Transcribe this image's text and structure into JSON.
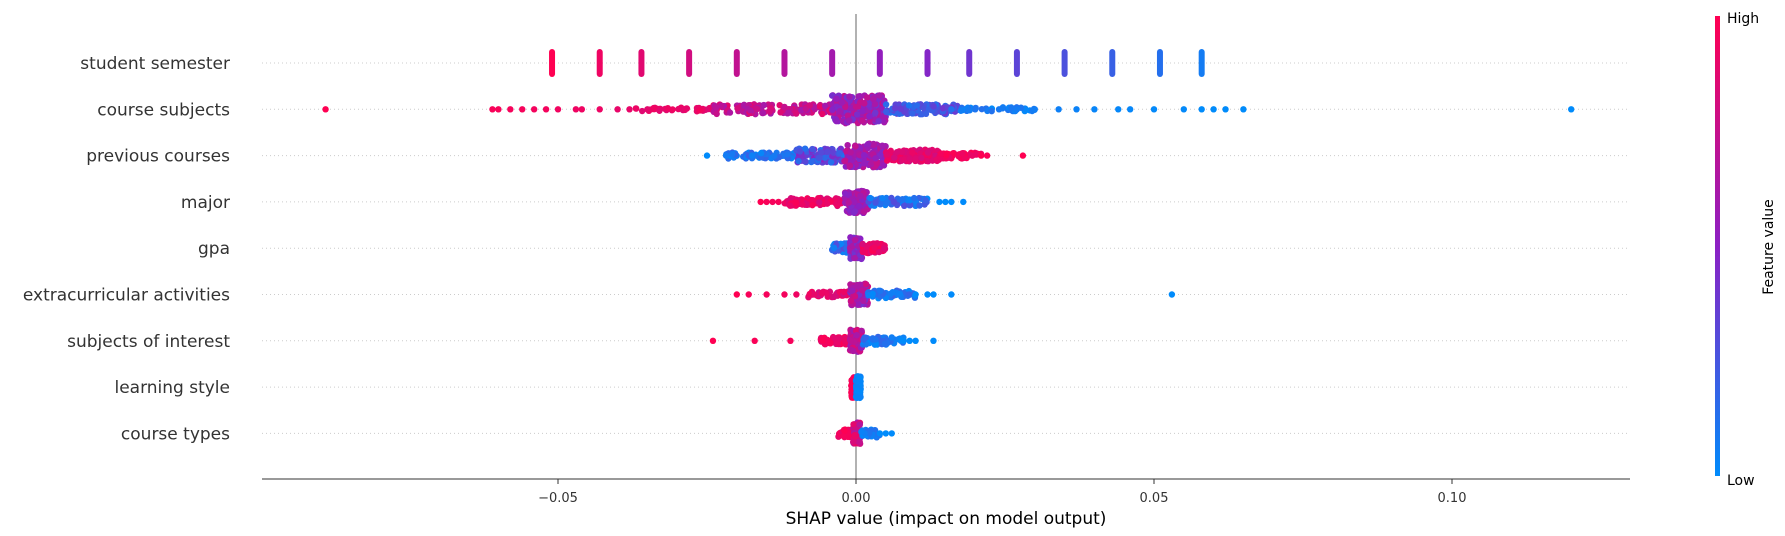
{
  "chart_data": {
    "type": "scatter",
    "subtype": "shap-beeswarm",
    "title": "",
    "xlabel": "SHAP value (impact on model output)",
    "ylabel": "",
    "xlim": [
      -0.099,
      0.129
    ],
    "xticks": [
      -0.05,
      0.0,
      0.05,
      0.1
    ],
    "xtick_labels": [
      "−0.05",
      "0.00",
      "0.05",
      "0.10"
    ],
    "grid": false,
    "colorbar": {
      "label": "Feature value",
      "high_label": "High",
      "low_label": "Low",
      "low_color": "#008bfb",
      "high_color": "#ff0052"
    },
    "features": [
      {
        "name": "student semester",
        "points": [
          [
            -0.051,
            1.0
          ],
          [
            -0.043,
            0.93
          ],
          [
            -0.036,
            0.87
          ],
          [
            -0.028,
            0.8
          ],
          [
            -0.02,
            0.73
          ],
          [
            -0.012,
            0.67
          ],
          [
            -0.004,
            0.6
          ],
          [
            0.004,
            0.53
          ],
          [
            0.012,
            0.47
          ],
          [
            0.019,
            0.4
          ],
          [
            0.027,
            0.33
          ],
          [
            0.035,
            0.27
          ],
          [
            0.043,
            0.2
          ],
          [
            0.051,
            0.13
          ],
          [
            0.058,
            0.07
          ]
        ],
        "spread": [
          0,
          0
        ],
        "clusters": []
      },
      {
        "name": "course subjects",
        "points": [
          [
            -0.089,
            1.0
          ],
          [
            -0.061,
            0.97
          ],
          [
            -0.06,
            0.97
          ],
          [
            -0.058,
            0.96
          ],
          [
            -0.056,
            0.96
          ],
          [
            -0.054,
            0.95
          ],
          [
            -0.052,
            0.95
          ],
          [
            -0.05,
            0.94
          ],
          [
            -0.047,
            0.93
          ],
          [
            -0.046,
            0.93
          ],
          [
            -0.043,
            0.92
          ],
          [
            -0.04,
            0.9
          ],
          [
            -0.038,
            0.9
          ],
          [
            -0.035,
            0.88
          ],
          [
            0.016,
            0.12
          ],
          [
            0.02,
            0.1
          ],
          [
            0.024,
            0.08
          ],
          [
            0.027,
            0.07
          ],
          [
            0.03,
            0.06
          ],
          [
            0.034,
            0.05
          ],
          [
            0.037,
            0.04
          ],
          [
            0.04,
            0.03
          ],
          [
            0.044,
            0.02
          ],
          [
            0.046,
            0.02
          ],
          [
            0.05,
            0.01
          ],
          [
            0.055,
            0.01
          ],
          [
            0.058,
            0.0
          ],
          [
            0.06,
            0.0
          ],
          [
            0.062,
            0.0
          ],
          [
            0.065,
            0.0
          ],
          [
            0.12,
            0.0
          ]
        ],
        "spread": [
          -0.04,
          0.045
        ],
        "clusters": [
          {
            "range": [
              -0.037,
              -0.024
            ],
            "w": 2,
            "n": 40,
            "color": [
              0.85,
              0.95
            ]
          },
          {
            "range": [
              -0.024,
              -0.004
            ],
            "w": 5,
            "n": 140,
            "color": [
              0.6,
              0.9
            ]
          },
          {
            "range": [
              -0.004,
              0.005
            ],
            "w": 14,
            "n": 220,
            "color": [
              0.4,
              0.75
            ]
          },
          {
            "range": [
              0.005,
              0.017
            ],
            "w": 5,
            "n": 110,
            "color": [
              0.1,
              0.4
            ]
          },
          {
            "range": [
              0.017,
              0.03
            ],
            "w": 2,
            "n": 40,
            "color": [
              0.0,
              0.15
            ]
          }
        ]
      },
      {
        "name": "previous courses",
        "points": [
          [
            -0.025,
            0.0
          ],
          [
            0.021,
            1.0
          ],
          [
            0.022,
            0.98
          ],
          [
            0.028,
            1.0
          ]
        ],
        "spread": [
          -0.025,
          0.022
        ],
        "clusters": [
          {
            "range": [
              -0.022,
              -0.01
            ],
            "w": 3,
            "n": 80,
            "color": [
              0.0,
              0.2
            ]
          },
          {
            "range": [
              -0.01,
              -0.002
            ],
            "w": 7,
            "n": 120,
            "color": [
              0.1,
              0.5
            ]
          },
          {
            "range": [
              -0.002,
              0.005
            ],
            "w": 12,
            "n": 150,
            "color": [
              0.45,
              0.75
            ]
          },
          {
            "range": [
              0.005,
              0.014
            ],
            "w": 6,
            "n": 110,
            "color": [
              0.8,
              0.95
            ]
          },
          {
            "range": [
              0.014,
              0.021
            ],
            "w": 3,
            "n": 50,
            "color": [
              0.9,
              1.0
            ]
          }
        ]
      },
      {
        "name": "major",
        "points": [
          [
            -0.016,
            1.0
          ],
          [
            -0.015,
            0.97
          ],
          [
            -0.014,
            0.96
          ],
          [
            -0.013,
            0.97
          ],
          [
            0.014,
            0.0
          ],
          [
            0.015,
            0.0
          ],
          [
            0.016,
            0.0
          ],
          [
            0.018,
            0.0
          ]
        ],
        "spread": [
          -0.016,
          0.018
        ],
        "clusters": [
          {
            "range": [
              -0.012,
              -0.002
            ],
            "w": 4,
            "n": 80,
            "color": [
              0.8,
              0.98
            ]
          },
          {
            "range": [
              -0.002,
              0.002
            ],
            "w": 11,
            "n": 110,
            "color": [
              0.45,
              0.7
            ]
          },
          {
            "range": [
              0.002,
              0.012
            ],
            "w": 4,
            "n": 70,
            "color": [
              0.0,
              0.3
            ]
          }
        ]
      },
      {
        "name": "gpa",
        "points": [],
        "spread": [
          -0.004,
          0.005
        ],
        "clusters": [
          {
            "range": [
              -0.004,
              -0.001
            ],
            "w": 5,
            "n": 60,
            "color": [
              0.0,
              0.3
            ]
          },
          {
            "range": [
              -0.001,
              0.001
            ],
            "w": 11,
            "n": 70,
            "color": [
              0.35,
              0.7
            ]
          },
          {
            "range": [
              0.001,
              0.005
            ],
            "w": 5,
            "n": 60,
            "color": [
              0.8,
              1.0
            ]
          }
        ]
      },
      {
        "name": "extracurricular activities",
        "points": [
          [
            -0.02,
            1.0
          ],
          [
            -0.018,
            0.97
          ],
          [
            -0.015,
            0.96
          ],
          [
            -0.012,
            0.95
          ],
          [
            -0.01,
            0.93
          ],
          [
            -0.007,
            0.9
          ],
          [
            0.01,
            0.0
          ],
          [
            0.012,
            0.0
          ],
          [
            0.013,
            0.0
          ],
          [
            0.016,
            0.0
          ],
          [
            0.053,
            0.0
          ]
        ],
        "spread": [
          -0.008,
          0.012
        ],
        "clusters": [
          {
            "range": [
              -0.008,
              -0.001
            ],
            "w": 3,
            "n": 45,
            "color": [
              0.8,
              0.95
            ]
          },
          {
            "range": [
              -0.001,
              0.002
            ],
            "w": 11,
            "n": 90,
            "color": [
              0.4,
              0.8
            ]
          },
          {
            "range": [
              0.002,
              0.01
            ],
            "w": 4,
            "n": 55,
            "color": [
              0.0,
              0.2
            ]
          }
        ]
      },
      {
        "name": "subjects of interest",
        "points": [
          [
            -0.024,
            1.0
          ],
          [
            -0.017,
            0.98
          ],
          [
            -0.011,
            0.96
          ],
          [
            0.008,
            0.0
          ],
          [
            0.009,
            0.0
          ],
          [
            0.01,
            0.0
          ],
          [
            0.013,
            0.0
          ]
        ],
        "spread": [
          -0.006,
          0.008
        ],
        "clusters": [
          {
            "range": [
              -0.006,
              -0.001
            ],
            "w": 4,
            "n": 55,
            "color": [
              0.85,
              1.0
            ]
          },
          {
            "range": [
              -0.001,
              0.001
            ],
            "w": 11,
            "n": 80,
            "color": [
              0.55,
              0.85
            ]
          },
          {
            "range": [
              0.001,
              0.008
            ],
            "w": 4,
            "n": 55,
            "color": [
              0.0,
              0.2
            ]
          }
        ]
      },
      {
        "name": "learning style",
        "points": [],
        "spread": [
          -0.001,
          0.001
        ],
        "clusters": [
          {
            "range": [
              -0.0008,
              0.0
            ],
            "w": 11,
            "n": 70,
            "color": [
              0.95,
              1.0
            ]
          },
          {
            "range": [
              0.0,
              0.0008
            ],
            "w": 11,
            "n": 70,
            "color": [
              0.0,
              0.05
            ]
          }
        ]
      },
      {
        "name": "course types",
        "points": [
          [
            0.004,
            0.0
          ],
          [
            0.005,
            0.0
          ],
          [
            0.006,
            0.0
          ]
        ],
        "spread": [
          -0.003,
          0.006
        ],
        "clusters": [
          {
            "range": [
              -0.003,
              -0.0005
            ],
            "w": 4,
            "n": 40,
            "color": [
              0.9,
              1.0
            ]
          },
          {
            "range": [
              -0.0005,
              0.0008
            ],
            "w": 11,
            "n": 70,
            "color": [
              0.6,
              0.95
            ]
          },
          {
            "range": [
              0.0008,
              0.004
            ],
            "w": 4,
            "n": 40,
            "color": [
              0.0,
              0.15
            ]
          }
        ]
      }
    ]
  }
}
